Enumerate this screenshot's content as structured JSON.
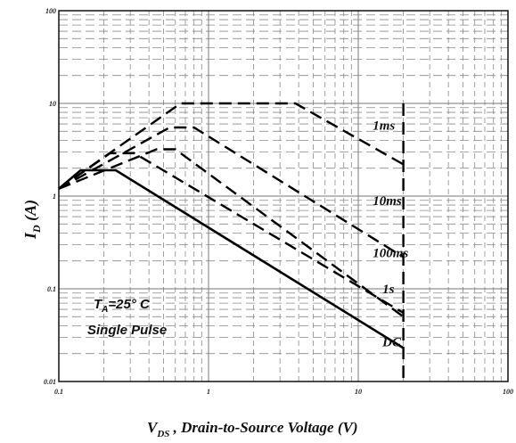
{
  "chart_data": {
    "type": "line",
    "x_scale": "log",
    "y_scale": "log",
    "xlim": [
      0.1,
      100
    ],
    "ylim": [
      0.01,
      100
    ],
    "grid": true,
    "x_ticks": [
      {
        "value": 0.1,
        "label": "0.1"
      },
      {
        "value": 1,
        "label": "1"
      },
      {
        "value": 10,
        "label": "10"
      },
      {
        "value": 100,
        "label": "100"
      }
    ],
    "y_ticks": [
      {
        "value": 0.01,
        "label": "0.01"
      },
      {
        "value": 0.1,
        "label": "0.1"
      },
      {
        "value": 1,
        "label": "1"
      },
      {
        "value": 10,
        "label": "10"
      },
      {
        "value": 100,
        "label": "100"
      }
    ],
    "xlabel_main": "V",
    "xlabel_sub": "DS",
    "xlabel_rest": " , Drain-to-Source Voltage (V)",
    "ylabel_main": "I",
    "ylabel_sub": "D",
    "ylabel_rest": " (A)",
    "conditions": {
      "line1_main": "T",
      "line1_sub": "A",
      "line1_rest": "=25° C",
      "line2": "Single Pulse"
    },
    "series": [
      {
        "name": "1ms",
        "style": "dashed",
        "points": [
          [
            0.1,
            1.2
          ],
          [
            0.65,
            10
          ],
          [
            3.8,
            10
          ],
          [
            20,
            2.2
          ]
        ],
        "label_at": [
          1.0,
          0.0
        ]
      },
      {
        "name": "10ms",
        "style": "dashed",
        "points": [
          [
            0.1,
            1.2
          ],
          [
            0.55,
            5.5
          ],
          [
            0.8,
            5.5
          ],
          [
            20,
            0.22
          ]
        ],
        "label_at": [
          1.0,
          0.0
        ]
      },
      {
        "name": "100ms",
        "style": "dashed",
        "points": [
          [
            0.1,
            1.2
          ],
          [
            0.22,
            2.9
          ],
          [
            0.32,
            2.9
          ],
          [
            20,
            0.055
          ]
        ],
        "label_at": [
          1.0,
          0.0
        ]
      },
      {
        "name": "1s",
        "style": "dashed",
        "points": [
          [
            0.1,
            1.2
          ],
          [
            0.45,
            3.2
          ],
          [
            0.6,
            3.2
          ],
          [
            20,
            0.05
          ]
        ],
        "label_at": [
          1.0,
          0.0
        ]
      },
      {
        "name": "DC",
        "style": "solid",
        "points": [
          [
            0.1,
            1.2
          ],
          [
            0.14,
            1.9
          ],
          [
            0.24,
            1.9
          ],
          [
            20,
            0.023
          ]
        ],
        "label_at": [
          1.0,
          0.0
        ]
      }
    ],
    "limit_line": {
      "style": "dashed",
      "points": [
        [
          20,
          10
        ],
        [
          20,
          0.01
        ]
      ]
    },
    "labels": [
      {
        "text": "1ms",
        "x": 12.5,
        "y": 5.2
      },
      {
        "text": "10ms",
        "x": 12.5,
        "y": 0.8
      },
      {
        "text": "100ms",
        "x": 12.5,
        "y": 0.22
      },
      {
        "text": "1s",
        "x": 14.5,
        "y": 0.09
      },
      {
        "text": "DC",
        "x": 14.5,
        "y": 0.024
      }
    ]
  }
}
